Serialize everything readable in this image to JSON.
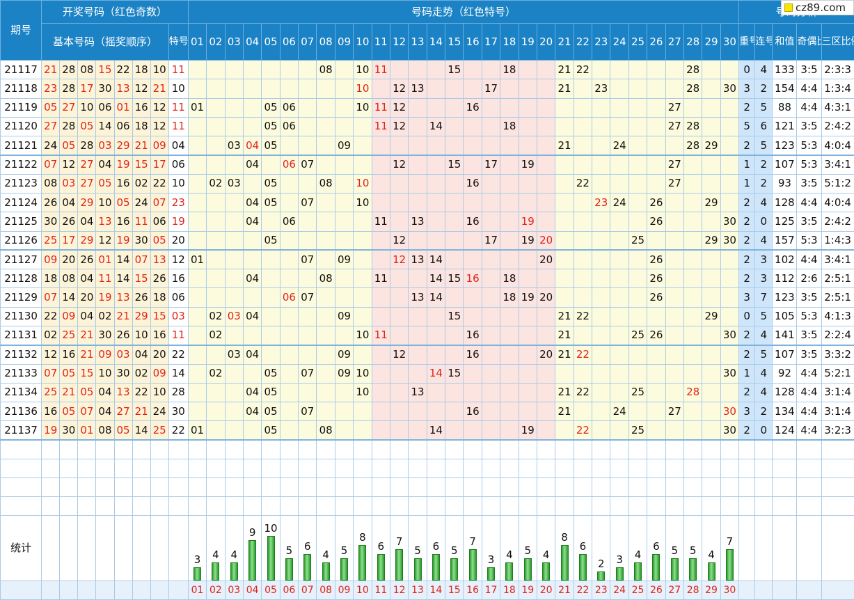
{
  "header": {
    "period": "期号",
    "draw_group": "开奖号码（红色奇数）",
    "trend_group": "号码走势（红色特号）",
    "analysis_group": "号码分析",
    "basic": "基本号码（摇奖顺序）",
    "special": "特号",
    "repeat": "重号",
    "consecutive": "连号",
    "sum": "和值",
    "odd_even": "奇偶比例",
    "three_zone": "三区比例",
    "numbers": [
      "01",
      "02",
      "03",
      "04",
      "05",
      "06",
      "07",
      "08",
      "09",
      "10",
      "11",
      "12",
      "13",
      "14",
      "15",
      "16",
      "17",
      "18",
      "19",
      "20",
      "21",
      "22",
      "23",
      "24",
      "25",
      "26",
      "27",
      "28",
      "29",
      "30"
    ]
  },
  "rows": [
    {
      "period": "21117",
      "basic": [
        "21",
        "28",
        "08",
        "15",
        "22",
        "18",
        "10"
      ],
      "special": "11",
      "repeat": "0",
      "consec": "4",
      "sum": "133",
      "oe": "3:5",
      "zone": "2:3:3"
    },
    {
      "period": "21118",
      "basic": [
        "23",
        "28",
        "17",
        "30",
        "13",
        "12",
        "21"
      ],
      "special": "10",
      "repeat": "3",
      "consec": "2",
      "sum": "154",
      "oe": "4:4",
      "zone": "1:3:4"
    },
    {
      "period": "21119",
      "basic": [
        "05",
        "27",
        "10",
        "06",
        "01",
        "16",
        "12"
      ],
      "special": "11",
      "repeat": "2",
      "consec": "5",
      "sum": "88",
      "oe": "4:4",
      "zone": "4:3:1"
    },
    {
      "period": "21120",
      "basic": [
        "27",
        "28",
        "05",
        "14",
        "06",
        "18",
        "12"
      ],
      "special": "11",
      "repeat": "5",
      "consec": "6",
      "sum": "121",
      "oe": "3:5",
      "zone": "2:4:2"
    },
    {
      "period": "21121",
      "basic": [
        "24",
        "05",
        "28",
        "03",
        "29",
        "21",
        "09"
      ],
      "special": "04",
      "repeat": "2",
      "consec": "5",
      "sum": "123",
      "oe": "5:3",
      "zone": "4:0:4"
    },
    {
      "period": "21122",
      "basic": [
        "07",
        "12",
        "27",
        "04",
        "19",
        "15",
        "17"
      ],
      "special": "06",
      "repeat": "1",
      "consec": "2",
      "sum": "107",
      "oe": "5:3",
      "zone": "3:4:1"
    },
    {
      "period": "21123",
      "basic": [
        "08",
        "03",
        "27",
        "05",
        "16",
        "02",
        "22"
      ],
      "special": "10",
      "repeat": "1",
      "consec": "2",
      "sum": "93",
      "oe": "3:5",
      "zone": "5:1:2"
    },
    {
      "period": "21124",
      "basic": [
        "26",
        "04",
        "29",
        "10",
        "05",
        "24",
        "07"
      ],
      "special": "23",
      "repeat": "2",
      "consec": "4",
      "sum": "128",
      "oe": "4:4",
      "zone": "4:0:4"
    },
    {
      "period": "21125",
      "basic": [
        "30",
        "26",
        "04",
        "13",
        "16",
        "11",
        "06"
      ],
      "special": "19",
      "repeat": "2",
      "consec": "0",
      "sum": "125",
      "oe": "3:5",
      "zone": "2:4:2"
    },
    {
      "period": "21126",
      "basic": [
        "25",
        "17",
        "29",
        "12",
        "19",
        "30",
        "05"
      ],
      "special": "20",
      "repeat": "2",
      "consec": "4",
      "sum": "157",
      "oe": "5:3",
      "zone": "1:4:3"
    },
    {
      "period": "21127",
      "basic": [
        "09",
        "20",
        "26",
        "01",
        "14",
        "07",
        "13"
      ],
      "special": "12",
      "repeat": "2",
      "consec": "3",
      "sum": "102",
      "oe": "4:4",
      "zone": "3:4:1"
    },
    {
      "period": "21128",
      "basic": [
        "18",
        "08",
        "04",
        "11",
        "14",
        "15",
        "26"
      ],
      "special": "16",
      "repeat": "2",
      "consec": "3",
      "sum": "112",
      "oe": "2:6",
      "zone": "2:5:1"
    },
    {
      "period": "21129",
      "basic": [
        "07",
        "14",
        "20",
        "19",
        "13",
        "26",
        "18"
      ],
      "special": "06",
      "repeat": "3",
      "consec": "7",
      "sum": "123",
      "oe": "3:5",
      "zone": "2:5:1"
    },
    {
      "period": "21130",
      "basic": [
        "22",
        "09",
        "04",
        "02",
        "21",
        "29",
        "15"
      ],
      "special": "03",
      "repeat": "0",
      "consec": "5",
      "sum": "105",
      "oe": "5:3",
      "zone": "4:1:3"
    },
    {
      "period": "21131",
      "basic": [
        "02",
        "25",
        "21",
        "30",
        "26",
        "10",
        "16"
      ],
      "special": "11",
      "repeat": "2",
      "consec": "4",
      "sum": "141",
      "oe": "3:5",
      "zone": "2:2:4"
    },
    {
      "period": "21132",
      "basic": [
        "12",
        "16",
        "21",
        "09",
        "03",
        "04",
        "20"
      ],
      "special": "22",
      "repeat": "2",
      "consec": "5",
      "sum": "107",
      "oe": "3:5",
      "zone": "3:3:2"
    },
    {
      "period": "21133",
      "basic": [
        "07",
        "05",
        "15",
        "10",
        "30",
        "02",
        "09"
      ],
      "special": "14",
      "repeat": "1",
      "consec": "4",
      "sum": "92",
      "oe": "4:4",
      "zone": "5:2:1"
    },
    {
      "period": "21134",
      "basic": [
        "25",
        "21",
        "05",
        "04",
        "13",
        "22",
        "10"
      ],
      "special": "28",
      "repeat": "2",
      "consec": "4",
      "sum": "128",
      "oe": "4:4",
      "zone": "3:1:4"
    },
    {
      "period": "21136",
      "basic": [
        "16",
        "05",
        "07",
        "04",
        "27",
        "21",
        "24"
      ],
      "special": "30",
      "repeat": "3",
      "consec": "2",
      "sum": "134",
      "oe": "4:4",
      "zone": "3:1:4"
    },
    {
      "period": "21137",
      "basic": [
        "19",
        "30",
        "01",
        "08",
        "05",
        "14",
        "25"
      ],
      "special": "22",
      "repeat": "2",
      "consec": "0",
      "sum": "124",
      "oe": "4:4",
      "zone": "3:2:3"
    }
  ],
  "stats": {
    "label": "统计",
    "counts": [
      3,
      4,
      4,
      9,
      10,
      5,
      6,
      4,
      5,
      8,
      6,
      7,
      5,
      6,
      5,
      7,
      3,
      4,
      5,
      4,
      8,
      6,
      2,
      3,
      4,
      6,
      5,
      5,
      4,
      7
    ]
  },
  "logo": "cz89.com",
  "colors": {
    "header": "#1a82c5",
    "odd": "#e0231a",
    "basic_bg": "#fdf4d8",
    "zone_yellow": "#fcfbdd",
    "zone_pink": "#fce4e0",
    "analysis_bg": "#cfe6fa",
    "bar": "#2a9a2a"
  }
}
